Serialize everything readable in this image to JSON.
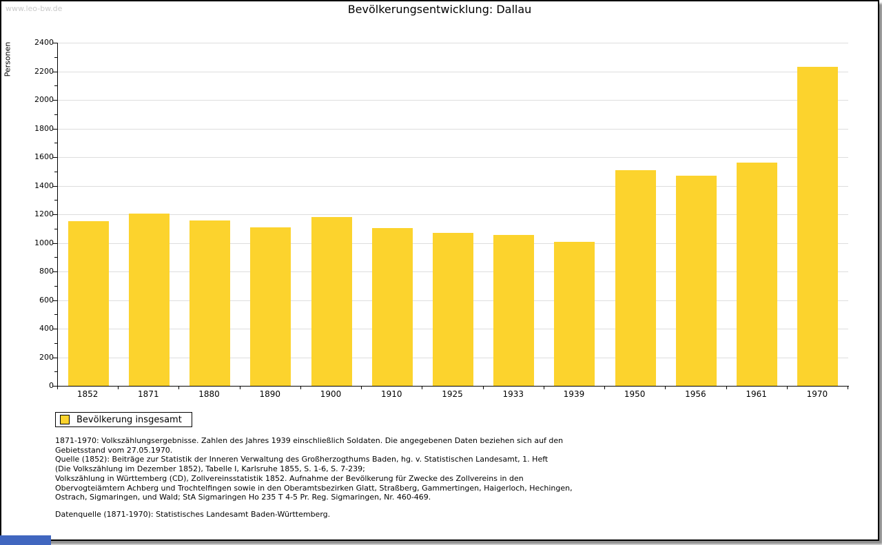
{
  "watermark": "www.leo-bw.de",
  "chart_data": {
    "type": "bar",
    "title": "Bevölkerungsentwicklung: Dallau",
    "xlabel": "",
    "ylabel": "Personen",
    "categories": [
      "1852",
      "1871",
      "1880",
      "1890",
      "1900",
      "1910",
      "1925",
      "1933",
      "1939",
      "1950",
      "1956",
      "1961",
      "1970"
    ],
    "values": [
      1150,
      1205,
      1155,
      1110,
      1180,
      1105,
      1070,
      1055,
      1005,
      1510,
      1470,
      1560,
      2230
    ],
    "series_name": "Bevölkerung insgesamt",
    "ylim": [
      0,
      2400
    ],
    "ytick_major": 200,
    "ytick_minor": 100,
    "grid": "horizontal-major",
    "legend_position": "bottom-left",
    "bar_color": "#FCD32D",
    "grid_color": "#DDDDDD",
    "axis_color": "#000000"
  },
  "legend": {
    "label": "Bevölkerung insgesamt"
  },
  "footnotes": {
    "lines": [
      "1871-1970: Volkszählungsergebnisse. Zahlen des Jahres 1939 einschließlich Soldaten. Die angegebenen Daten beziehen sich auf den",
      "Gebietsstand vom 27.05.1970.",
      "Quelle (1852): Beiträge zur Statistik der Inneren Verwaltung des Großherzogthums Baden, hg. v. Statistischen Landesamt, 1. Heft",
      "(Die Volkszählung im Dezember 1852), Tabelle I, Karlsruhe 1855, S. 1-6, S. 7-239;",
      "Volkszählung in Württemberg (CD), Zollvereinsstatistik 1852. Aufnahme der Bevölkerung für Zwecke des Zollvereins in den",
      "Obervogteiämtern Achberg und Trochtelfingen sowie in den Oberamtsbezirken Glatt, Straßberg, Gammertingen, Haigerloch, Hechingen,",
      "Ostrach, Sigmaringen, und Wald; StA Sigmaringen Ho 235 T 4-5 Pr. Reg. Sigmaringen, Nr. 460-469."
    ],
    "datasource": "Datenquelle (1871-1970): Statistisches Landesamt Baden-Württemberg."
  },
  "ui": {
    "corner_fragment_color": "#4066BF"
  }
}
